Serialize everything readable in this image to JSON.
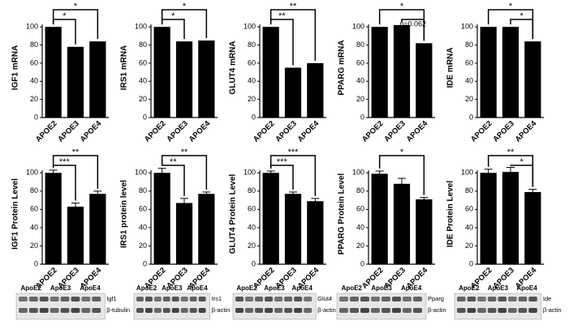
{
  "chart_data": [
    {
      "type": "bar",
      "ylabel": "IGF1 mRNA",
      "categories": [
        "APOE2",
        "APOE3",
        "APOE4"
      ],
      "values": [
        100,
        78,
        84
      ],
      "color": "#000000",
      "ylim": [
        0,
        110
      ],
      "yticks": [
        0,
        20,
        40,
        60,
        80,
        100
      ],
      "annotations": [
        {
          "text": "*",
          "between": [
            "APOE2",
            "APOE4"
          ]
        },
        {
          "text": "*",
          "between": [
            "APOE2",
            "APOE3"
          ]
        }
      ]
    },
    {
      "type": "bar",
      "ylabel": "IRS1 mRNA",
      "categories": [
        "APOE2",
        "APOE3",
        "APOE4"
      ],
      "values": [
        100,
        84,
        85
      ],
      "color": "#000000",
      "ylim": [
        0,
        110
      ],
      "yticks": [
        0,
        20,
        40,
        60,
        80,
        100
      ],
      "annotations": [
        {
          "text": "*",
          "between": [
            "APOE2",
            "APOE4"
          ]
        },
        {
          "text": "*",
          "between": [
            "APOE2",
            "APOE3"
          ]
        }
      ]
    },
    {
      "type": "bar",
      "ylabel": "GLUT4 mRNA",
      "categories": [
        "APOE2",
        "APOE3",
        "APOE4"
      ],
      "values": [
        100,
        55,
        60
      ],
      "color": "#000000",
      "ylim": [
        0,
        110
      ],
      "yticks": [
        0,
        20,
        40,
        60,
        80,
        100
      ],
      "annotations": [
        {
          "text": "**",
          "between": [
            "APOE2",
            "APOE4"
          ]
        },
        {
          "text": "**",
          "between": [
            "APOE2",
            "APOE3"
          ]
        }
      ]
    },
    {
      "type": "bar",
      "ylabel": "PPARG mRNA",
      "categories": [
        "APOE2",
        "APOE3",
        "APOE4"
      ],
      "values": [
        100,
        102,
        82
      ],
      "color": "#000000",
      "ylim": [
        0,
        110
      ],
      "yticks": [
        0,
        20,
        40,
        60,
        80,
        100
      ],
      "annotations": [
        {
          "text": "*",
          "between": [
            "APOE2",
            "APOE4"
          ]
        },
        {
          "text": "p=0.062",
          "between": [
            "APOE3",
            "APOE4"
          ]
        }
      ]
    },
    {
      "type": "bar",
      "ylabel": "IDE mRNA",
      "categories": [
        "APOE2",
        "APOE3",
        "APOE4"
      ],
      "values": [
        100,
        100,
        84
      ],
      "color": "#000000",
      "ylim": [
        0,
        110
      ],
      "yticks": [
        0,
        20,
        40,
        60,
        80,
        100
      ],
      "annotations": [
        {
          "text": "*",
          "between": [
            "APOE2",
            "APOE4"
          ]
        },
        {
          "text": "*",
          "between": [
            "APOE3",
            "APOE4"
          ]
        }
      ]
    },
    {
      "type": "bar",
      "ylabel": "IGF1 Protein Level",
      "categories": [
        "APOE2",
        "APOE3",
        "APOE4"
      ],
      "values": [
        100,
        63,
        77
      ],
      "errors": [
        3,
        4,
        3
      ],
      "color": "#000000",
      "ylim": [
        0,
        110
      ],
      "yticks": [
        0,
        20,
        40,
        60,
        80,
        100
      ],
      "annotations": [
        {
          "text": "**",
          "between": [
            "APOE2",
            "APOE4"
          ]
        },
        {
          "text": "***",
          "between": [
            "APOE2",
            "APOE3"
          ]
        }
      ]
    },
    {
      "type": "bar",
      "ylabel": "IRS1 protein level",
      "categories": [
        "APOE2",
        "APOE3",
        "APOE4"
      ],
      "values": [
        100,
        67,
        77
      ],
      "errors": [
        5,
        5,
        2
      ],
      "color": "#000000",
      "ylim": [
        0,
        110
      ],
      "yticks": [
        0,
        20,
        40,
        60,
        80,
        100
      ],
      "annotations": [
        {
          "text": "**",
          "between": [
            "APOE2",
            "APOE4"
          ]
        },
        {
          "text": "**",
          "between": [
            "APOE2",
            "APOE3"
          ]
        }
      ]
    },
    {
      "type": "bar",
      "ylabel": "GLUT4 Protein Level",
      "categories": [
        "APOE2",
        "APOE3",
        "APOE4"
      ],
      "values": [
        100,
        77,
        69
      ],
      "errors": [
        2,
        2,
        3
      ],
      "color": "#000000",
      "ylim": [
        0,
        110
      ],
      "yticks": [
        0,
        20,
        40,
        60,
        80,
        100
      ],
      "annotations": [
        {
          "text": "***",
          "between": [
            "APOE2",
            "APOE4"
          ]
        },
        {
          "text": "***",
          "between": [
            "APOE2",
            "APOE3"
          ]
        }
      ]
    },
    {
      "type": "bar",
      "ylabel": "PPARG Protein Level",
      "categories": [
        "APOE2",
        "APOE3",
        "APOE4"
      ],
      "values": [
        99,
        88,
        71
      ],
      "errors": [
        3,
        6,
        2
      ],
      "color": "#000000",
      "ylim": [
        0,
        110
      ],
      "yticks": [
        0,
        20,
        40,
        60,
        80,
        100
      ],
      "annotations": [
        {
          "text": "*",
          "between": [
            "APOE2",
            "APOE4"
          ]
        }
      ]
    },
    {
      "type": "bar",
      "ylabel": "IDE Protein Level",
      "categories": [
        "APOE2",
        "APOE3",
        "APOE4"
      ],
      "values": [
        100,
        101,
        79
      ],
      "errors": [
        4,
        5,
        3
      ],
      "color": "#000000",
      "ylim": [
        0,
        110
      ],
      "yticks": [
        0,
        20,
        40,
        60,
        80,
        100
      ],
      "annotations": [
        {
          "text": "**",
          "between": [
            "APOE2",
            "APOE4"
          ]
        },
        {
          "text": "*",
          "between": [
            "APOE3",
            "APOE4"
          ]
        }
      ]
    }
  ],
  "blots": [
    {
      "groups": [
        "ApoE2",
        "ApoE3",
        "ApoE4"
      ],
      "bands": [
        "Igf1",
        "β-tubulin"
      ]
    },
    {
      "groups": [
        "ApoE2",
        "ApoE3",
        "ApoE4"
      ],
      "bands": [
        "Irs1",
        "β-actin"
      ]
    },
    {
      "groups": [
        "ApoE2",
        "ApoE3",
        "ApoE4"
      ],
      "bands": [
        "Glut4",
        "β-actin"
      ]
    },
    {
      "groups": [
        "ApoE2",
        "ApoE3",
        "ApoE4"
      ],
      "bands": [
        "Pparg",
        "β-actin"
      ]
    },
    {
      "groups": [
        "ApoE2",
        "ApoE3",
        "ApoE4"
      ],
      "bands": [
        "Ide",
        "β-actin"
      ]
    }
  ]
}
